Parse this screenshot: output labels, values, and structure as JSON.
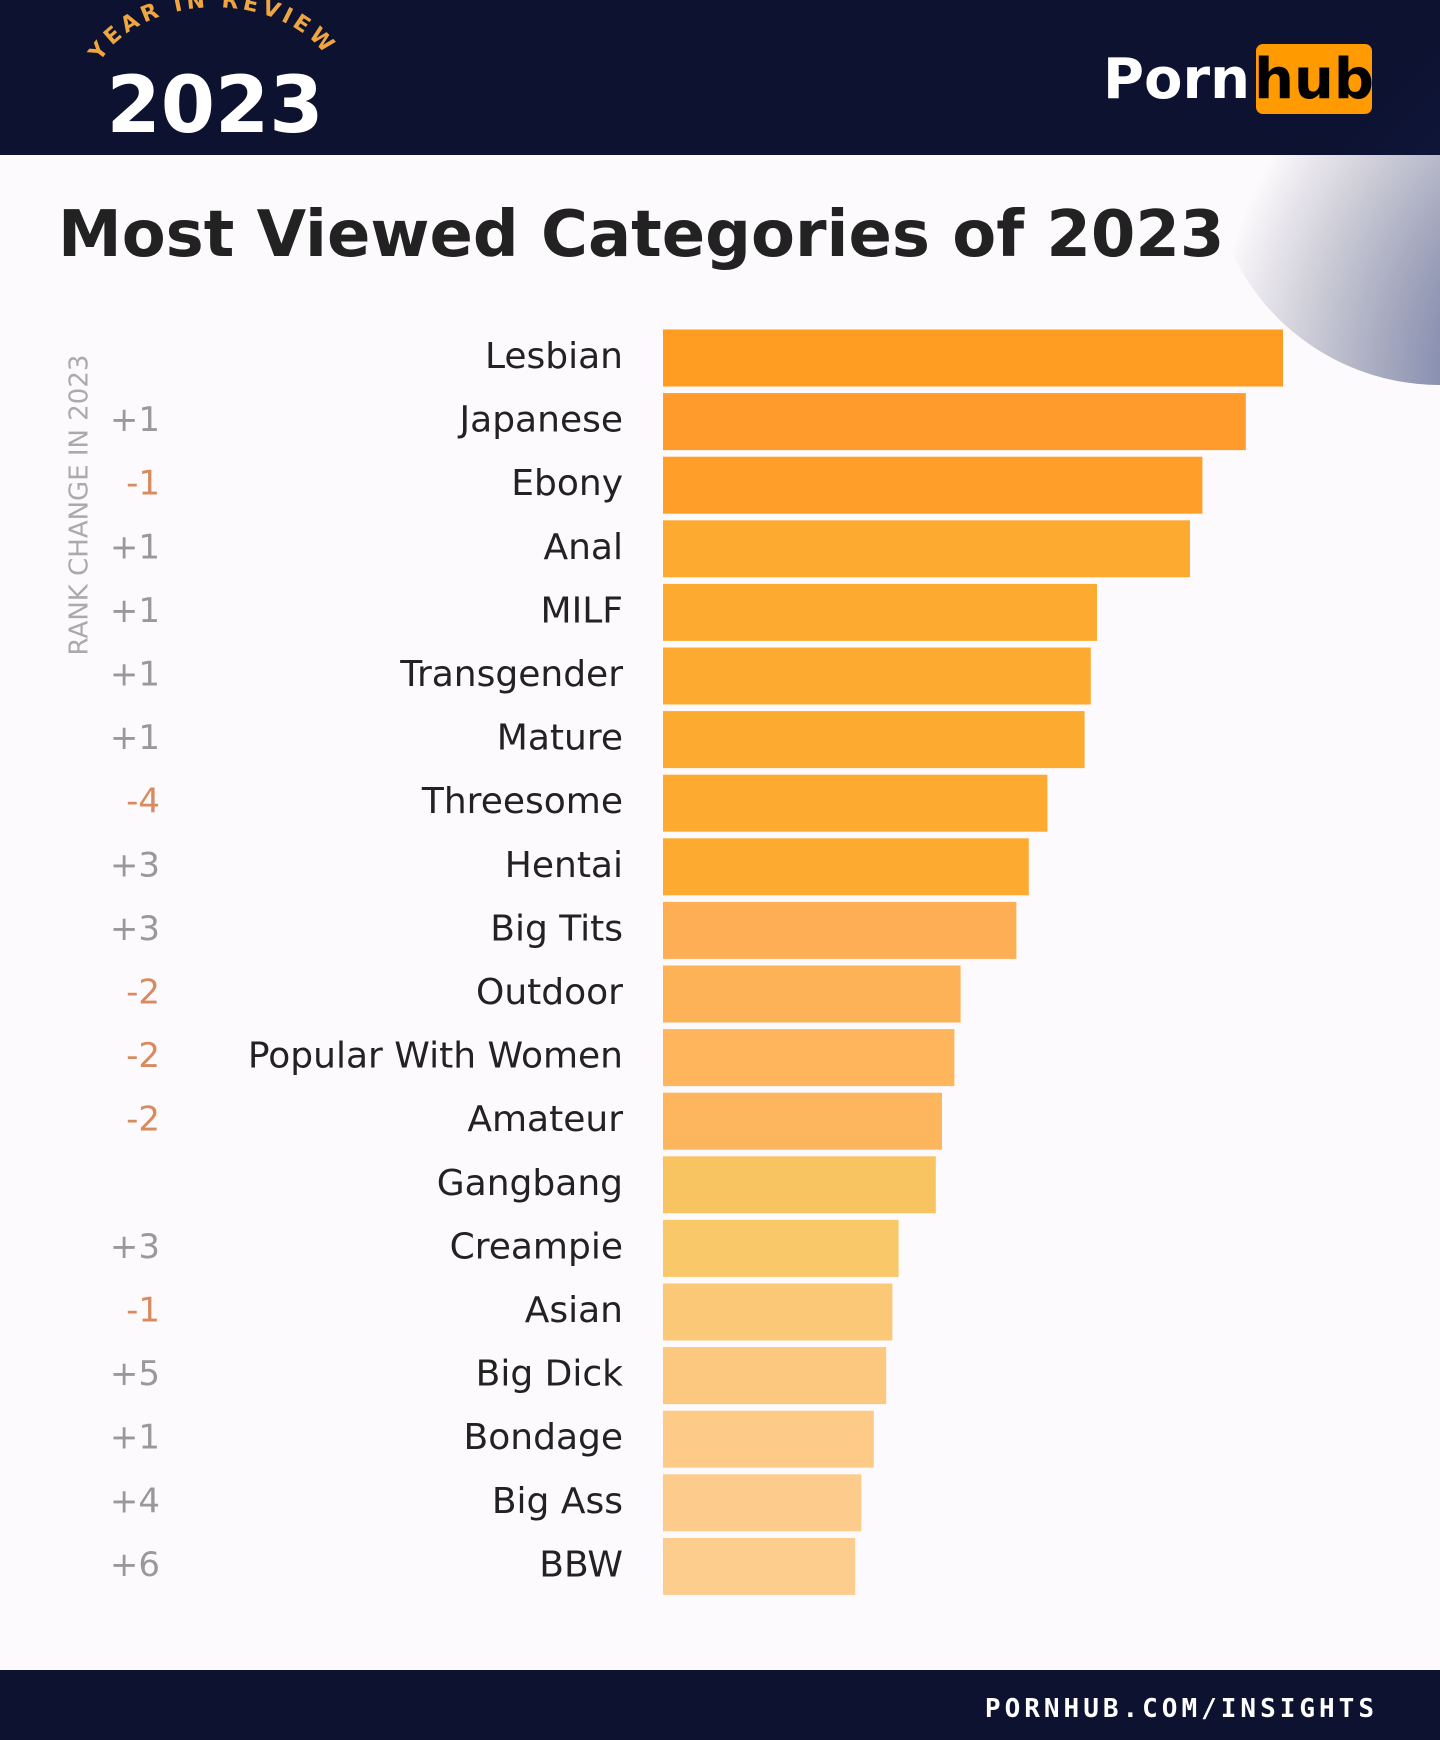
{
  "header": {
    "badge": "YEAR IN REVIEW",
    "year": "2023",
    "logo_left": "Porn",
    "logo_right": "hub"
  },
  "chart_data": {
    "type": "bar",
    "orientation": "horizontal",
    "title": "Most Viewed Categories of 2023",
    "change_label": "RANK CHANGE IN 2023",
    "categories": [
      "Lesbian",
      "Japanese",
      "Ebony",
      "Anal",
      "MILF",
      "Transgender",
      "Mature",
      "Threesome",
      "Hentai",
      "Big Tits",
      "Outdoor",
      "Popular With Women",
      "Amateur",
      "Gangbang",
      "Creampie",
      "Asian",
      "Big Dick",
      "Bondage",
      "Big Ass",
      "BBW"
    ],
    "rank_changes": [
      null,
      "+1",
      "-1",
      "+1",
      "+1",
      "+1",
      "+1",
      "-4",
      "+3",
      "+3",
      "-2",
      "-2",
      "-2",
      null,
      "+3",
      "-1",
      "+5",
      "+1",
      "+4",
      "+6"
    ],
    "values": [
      100,
      94,
      87,
      85,
      70,
      69,
      68,
      62,
      59,
      57,
      48,
      47,
      45,
      44,
      38,
      37,
      36,
      34,
      32,
      31
    ],
    "colors": [
      "#ff9c21",
      "#ff9a2c",
      "#ff9f2a",
      "#fdaa30",
      "#fdaa30",
      "#fdaa30",
      "#fdaa30",
      "#fdaa30",
      "#fdaa30",
      "#feae55",
      "#feb257",
      "#feb55c",
      "#feb65e",
      "#f8c462",
      "#f9c869",
      "#fbc878",
      "#fcc880",
      "#fdca88",
      "#fdcc8c",
      "#fdcd8e"
    ],
    "xlim": [
      0,
      100
    ]
  },
  "footer": {
    "url": "PORNHUB.COM/INSIGHTS"
  }
}
